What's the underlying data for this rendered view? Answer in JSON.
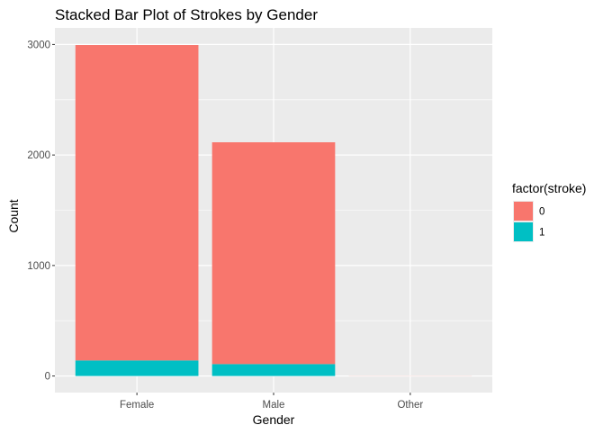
{
  "chart_data": {
    "type": "bar",
    "stacked": true,
    "title": "Stacked Bar Plot of Strokes by Gender",
    "xlabel": "Gender",
    "ylabel": "Count",
    "categories": [
      "Female",
      "Male",
      "Other"
    ],
    "series": [
      {
        "name": "0",
        "values": [
          2854,
          2007,
          1
        ],
        "color": "#F8766D"
      },
      {
        "name": "1",
        "values": [
          141,
          108,
          0
        ],
        "color": "#00BFC4"
      }
    ],
    "ylim": [
      -150,
      3150
    ],
    "yticks": [
      0,
      1000,
      2000,
      3000
    ],
    "ytick_labels": [
      "0",
      "1000",
      "2000",
      "3000"
    ],
    "grid": true,
    "panel_background": "#EBEBEB",
    "legend": {
      "title": "factor(stroke)",
      "position": "right",
      "labels": [
        "0",
        "1"
      ]
    }
  }
}
